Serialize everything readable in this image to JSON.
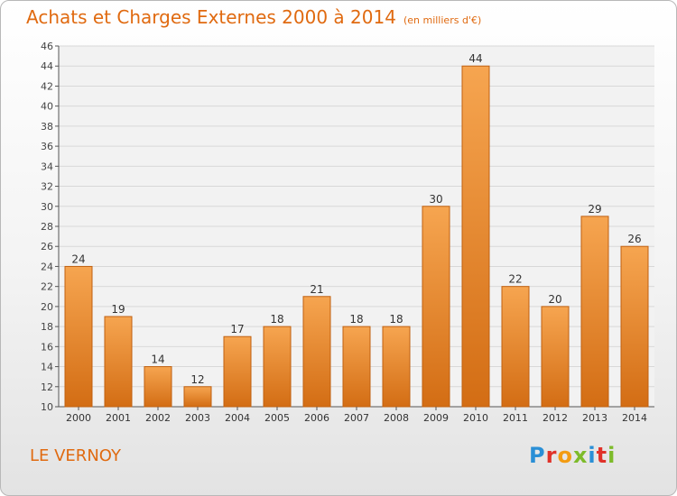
{
  "header": {
    "title": "Achats et Charges Externes 2000 à 2014",
    "unit": "(en milliers d'€)"
  },
  "footer": {
    "location": "LE VERNOY",
    "brand_letters": [
      {
        "char": "P",
        "color": "#2a8fd6"
      },
      {
        "char": "r",
        "color": "#e0322a"
      },
      {
        "char": "o",
        "color": "#f39c12"
      },
      {
        "char": "x",
        "color": "#7dbb2a"
      },
      {
        "char": "i",
        "color": "#2a8fd6"
      },
      {
        "char": "t",
        "color": "#e0322a"
      },
      {
        "char": "i",
        "color": "#7dbb2a"
      }
    ]
  },
  "colors": {
    "bar_top": "#f6a550",
    "bar_bottom": "#d36d14",
    "bar_stroke": "#c06010",
    "accent": "#e06a10",
    "grid": "#d8d8d8"
  },
  "chart_data": {
    "type": "bar",
    "title": "Achats et Charges Externes 2000 à 2014",
    "ylabel": "(en milliers d'€)",
    "xlabel": "",
    "categories": [
      "2000",
      "2001",
      "2002",
      "2003",
      "2004",
      "2005",
      "2006",
      "2007",
      "2008",
      "2009",
      "2010",
      "2011",
      "2012",
      "2013",
      "2014"
    ],
    "values": [
      24,
      19,
      14,
      12,
      17,
      18,
      21,
      18,
      18,
      30,
      44,
      22,
      20,
      29,
      26
    ],
    "ylim": [
      10,
      46
    ],
    "ytick_step": 2,
    "grid": true
  }
}
